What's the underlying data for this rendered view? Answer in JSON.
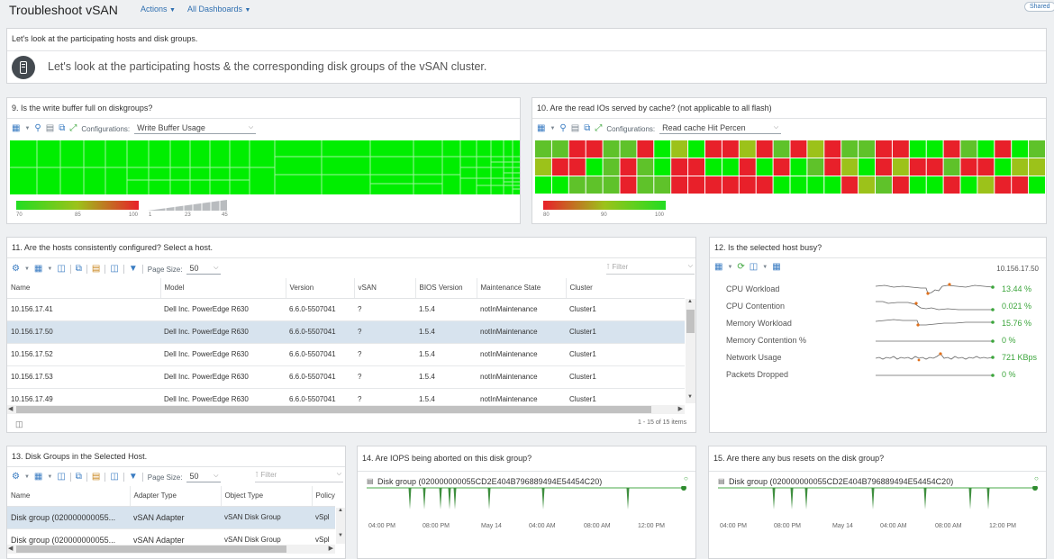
{
  "header": {
    "title": "Troubleshoot vSAN",
    "actions": "Actions",
    "all_dashboards": "All Dashboards",
    "shared": "Shared"
  },
  "intro": {
    "heading": "Let's look at the participating hosts and disk groups.",
    "message": "Let's look at the participating hosts & the corresponding disk groups of the vSAN cluster."
  },
  "p9": {
    "title": "9. Is the write buffer full on diskgroups?",
    "config_label": "Configurations:",
    "config_value": "Write Buffer Usage",
    "legend_ticks": [
      "70",
      "85",
      "100"
    ],
    "size_ticks": [
      "1",
      "23",
      "45"
    ]
  },
  "p10": {
    "title": "10. Are the read IOs served by cache? (not applicable to all flash)",
    "config_label": "Configurations:",
    "config_value": "Read cache Hit Percen",
    "legend_ticks": [
      "80",
      "90",
      "100"
    ]
  },
  "p11": {
    "title": "11. Are the hosts consistently configured? Select a host.",
    "page_size_label": "Page Size:",
    "page_size": "50",
    "filter_placeholder": "Filter",
    "columns": [
      "Name",
      "Model",
      "Version",
      "vSAN",
      "BIOS Version",
      "Maintenance State",
      "Cluster"
    ],
    "rows": [
      [
        "10.156.17.41",
        "Dell Inc. PowerEdge R630",
        "6.6.0-5507041",
        "?",
        "1.5.4",
        "notInMaintenance",
        "Cluster1"
      ],
      [
        "10.156.17.50",
        "Dell Inc. PowerEdge R630",
        "6.6.0-5507041",
        "?",
        "1.5.4",
        "notInMaintenance",
        "Cluster1"
      ],
      [
        "10.156.17.52",
        "Dell Inc. PowerEdge R630",
        "6.6.0-5507041",
        "?",
        "1.5.4",
        "notInMaintenance",
        "Cluster1"
      ],
      [
        "10.156.17.53",
        "Dell Inc. PowerEdge R630",
        "6.6.0-5507041",
        "?",
        "1.5.4",
        "notInMaintenance",
        "Cluster1"
      ],
      [
        "10.156.17.49",
        "Dell Inc. PowerEdge R630",
        "6.6.0-5507041",
        "?",
        "1.5.4",
        "notInMaintenance",
        "Cluster1"
      ]
    ],
    "selected_row": 1,
    "footer": "1 - 15 of 15 items"
  },
  "p12": {
    "title": "12. Is the selected host busy?",
    "host": "10.156.17.50",
    "metrics": [
      {
        "label": "CPU Workload",
        "value": "13.44 %"
      },
      {
        "label": "CPU Contention",
        "value": "0.021 %"
      },
      {
        "label": "Memory Workload",
        "value": "15.76 %"
      },
      {
        "label": "Memory Contention %",
        "value": "0 %"
      },
      {
        "label": "Network Usage",
        "value": "721 KBps"
      },
      {
        "label": "Packets Dropped",
        "value": "0 %"
      }
    ]
  },
  "p13": {
    "title": "13. Disk Groups in the Selected Host.",
    "page_size_label": "Page Size:",
    "page_size": "50",
    "filter_placeholder": "Filter",
    "columns": [
      "Name",
      "Adapter Type",
      "Object Type",
      "Policy"
    ],
    "rows": [
      [
        "Disk group (020000000055...",
        "vSAN Adapter",
        "vSAN Disk Group",
        "vSpl"
      ],
      [
        "Disk group (020000000055...",
        "vSAN Adapter",
        "vSAN Disk Group",
        "vSpl"
      ]
    ]
  },
  "p14": {
    "title": "14. Are IOPS being aborted on this disk group?",
    "series": "Disk group (020000000055CD2E404B796889494E54454C20)",
    "time_labels": [
      "04:00 PM",
      "08:00 PM",
      "May 14",
      "04:00 AM",
      "08:00 AM",
      "12:00 PM"
    ]
  },
  "p15": {
    "title": "15. Are there any bus resets on the disk group?",
    "series": "Disk group (020000000055CD2E404B796889494E54454C20)",
    "time_labels": [
      "04:00 PM",
      "08:00 PM",
      "May 14",
      "04:00 AM",
      "08:00 AM",
      "12:00 PM"
    ]
  },
  "colors": {
    "heat_green": "#00ee00",
    "heat_red": "#e8202a",
    "accent": "#3a7cc2",
    "metric_value": "#3ca53c"
  }
}
